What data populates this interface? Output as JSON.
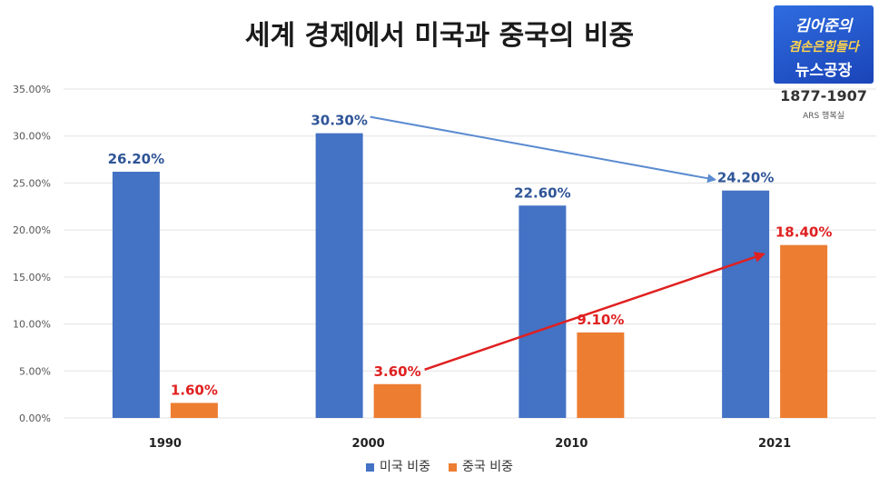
{
  "page": {
    "title": "세계 경제에서 미국과 중국의 비중"
  },
  "logo": {
    "line1": "김어준의",
    "line2": "겸손은힘들다",
    "line3": "뉴스공장",
    "years": "1877-1907",
    "sub": "ARS 행복실"
  },
  "chart_data": {
    "type": "bar",
    "categories": [
      "1990",
      "2000",
      "2010",
      "2021"
    ],
    "series": [
      {
        "name": "미국 비중",
        "color": "#4472c4",
        "label_color": "#2f5597",
        "values": [
          26.2,
          30.3,
          22.6,
          24.2
        ],
        "labels": [
          "26.20%",
          "30.30%",
          "22.60%",
          "24.20%"
        ]
      },
      {
        "name": "중국 비중",
        "color": "#ed7d31",
        "label_color": "#e02020",
        "values": [
          1.6,
          3.6,
          9.1,
          18.4
        ],
        "labels": [
          "1.60%",
          "3.60%",
          "9.10%",
          "18.40%"
        ]
      }
    ],
    "ylim": [
      0,
      35
    ],
    "yticks": [
      "0.00%",
      "5.00%",
      "10.00%",
      "15.00%",
      "20.00%",
      "25.00%",
      "30.00%",
      "35.00%"
    ],
    "grid": true,
    "legend": "bottom-center",
    "annotations": [
      {
        "type": "arrow",
        "from": {
          "series": 0,
          "x": "2000",
          "y": 30.3
        },
        "to": {
          "series": 0,
          "x": "2021",
          "y": 24.2
        },
        "color": "#5b8bd0"
      },
      {
        "type": "arrow",
        "from": {
          "series": 1,
          "x": "2000",
          "y": 3.6
        },
        "to": {
          "series": 1,
          "x": "2021",
          "y": 18.4
        },
        "color": "#e02020"
      }
    ]
  }
}
